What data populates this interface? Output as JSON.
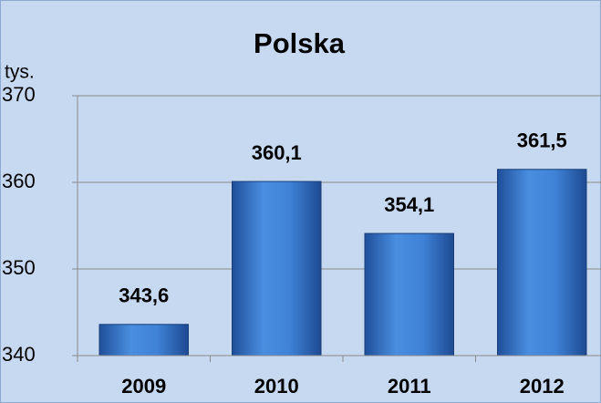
{
  "chart_data": {
    "type": "bar",
    "title": "Polska",
    "y_label": "tys.",
    "categories": [
      "2009",
      "2010",
      "2011",
      "2012"
    ],
    "values": [
      343.6,
      360.1,
      354.1,
      361.5
    ],
    "value_labels": [
      "343,6",
      "360,1",
      "354,1",
      "361,5"
    ],
    "color": "#3b7dd8",
    "ylim": [
      340,
      370
    ],
    "yticks": [
      340,
      350,
      360,
      370
    ],
    "grid": true
  }
}
